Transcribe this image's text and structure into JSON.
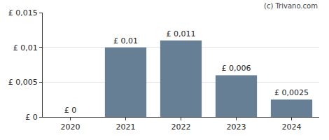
{
  "chart_data": {
    "type": "bar",
    "categories": [
      "2020",
      "2021",
      "2022",
      "2023",
      "2024"
    ],
    "values": [
      0,
      0.01,
      0.011,
      0.006,
      0.0025
    ],
    "value_labels": [
      "£ 0",
      "£ 0,01",
      "£ 0,011",
      "£ 0,006",
      "£ 0,0025"
    ],
    "data_labels": true,
    "color": "#667f95",
    "ylim": [
      0,
      0.015
    ],
    "yticks": [
      {
        "value": 0,
        "label": "£ 0"
      },
      {
        "value": 0.005,
        "label": "£ 0,005"
      },
      {
        "value": 0.01,
        "label": "£ 0,01"
      },
      {
        "value": 0.015,
        "label": "£ 0,015"
      }
    ],
    "grid": true,
    "annotation": "(c) Trivano.com"
  }
}
